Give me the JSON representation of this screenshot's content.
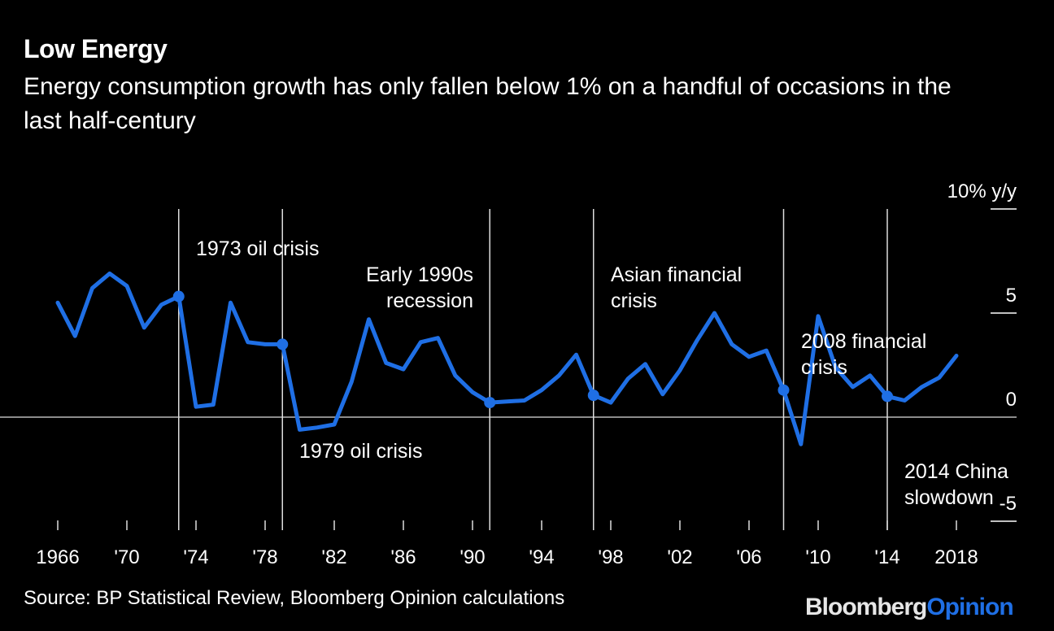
{
  "header": {
    "title": "Low Energy",
    "subtitle": "Energy consumption growth has only fallen below 1% on a handful of occasions in the last half-century"
  },
  "footer": {
    "source": "Source: BP Statistical Review, Bloomberg Opinion calculations",
    "brand_part1": "Bloomberg",
    "brand_part2": "Opinion"
  },
  "colors": {
    "line": "#1f6fe5",
    "background": "#000000",
    "text": "#ffffff",
    "brand_accent": "#1f6fe5"
  },
  "chart_data": {
    "type": "line",
    "title": "Low Energy",
    "subtitle": "Energy consumption growth has only fallen below 1% on a handful of occasions in the last half-century",
    "xlabel": "",
    "ylabel": "10% y/y",
    "xlim": [
      1966,
      2018
    ],
    "ylim": [
      -5,
      10
    ],
    "y_ticks": [
      10,
      5,
      0,
      -5
    ],
    "y_tick_labels": [
      "10% y/y",
      "5",
      "0",
      "-5"
    ],
    "x_ticks": [
      1966,
      1970,
      1974,
      1978,
      1982,
      1986,
      1990,
      1994,
      1998,
      2002,
      2006,
      2010,
      2014,
      2018
    ],
    "x_tick_labels": [
      "1966",
      "'70",
      "'74",
      "'78",
      "'82",
      "'86",
      "'90",
      "'94",
      "'98",
      "'02",
      "'06",
      "'10",
      "'14",
      "2018"
    ],
    "grid": false,
    "legend": "none",
    "series": [
      {
        "name": "Energy consumption growth (% y/y)",
        "x": [
          1966,
          1967,
          1968,
          1969,
          1970,
          1971,
          1972,
          1973,
          1974,
          1975,
          1976,
          1977,
          1978,
          1979,
          1980,
          1981,
          1982,
          1983,
          1984,
          1985,
          1986,
          1987,
          1988,
          1989,
          1990,
          1991,
          1992,
          1993,
          1994,
          1995,
          1996,
          1997,
          1998,
          1999,
          2000,
          2001,
          2002,
          2003,
          2004,
          2005,
          2006,
          2007,
          2008,
          2009,
          2010,
          2011,
          2012,
          2013,
          2014,
          2015,
          2016,
          2017,
          2018
        ],
        "values": [
          5.5,
          3.9,
          6.2,
          6.9,
          6.3,
          4.3,
          5.4,
          5.8,
          0.5,
          0.6,
          5.5,
          3.6,
          3.5,
          3.5,
          -0.6,
          -0.5,
          -0.35,
          1.7,
          4.7,
          2.6,
          2.3,
          3.6,
          3.8,
          2.0,
          1.2,
          0.7,
          0.75,
          0.8,
          1.3,
          2.0,
          3.0,
          1.05,
          0.7,
          1.85,
          2.55,
          1.1,
          2.25,
          3.7,
          5.0,
          3.5,
          2.9,
          3.2,
          1.3,
          -1.3,
          4.85,
          2.4,
          1.45,
          2.0,
          1.0,
          0.8,
          1.45,
          1.9,
          2.95
        ]
      }
    ],
    "annotations": [
      {
        "year": 1973,
        "lines": [
          "1973 oil crisis"
        ]
      },
      {
        "year": 1979,
        "lines": [
          "1979 oil crisis"
        ]
      },
      {
        "year": 1991,
        "lines": [
          "Early 1990s",
          "recession"
        ]
      },
      {
        "year": 1997,
        "lines": [
          "Asian financial",
          "crisis"
        ]
      },
      {
        "year": 2008,
        "lines": [
          "2008 financial",
          "crisis"
        ]
      },
      {
        "year": 2014,
        "lines": [
          "2014 China",
          "slowdown"
        ]
      }
    ]
  }
}
